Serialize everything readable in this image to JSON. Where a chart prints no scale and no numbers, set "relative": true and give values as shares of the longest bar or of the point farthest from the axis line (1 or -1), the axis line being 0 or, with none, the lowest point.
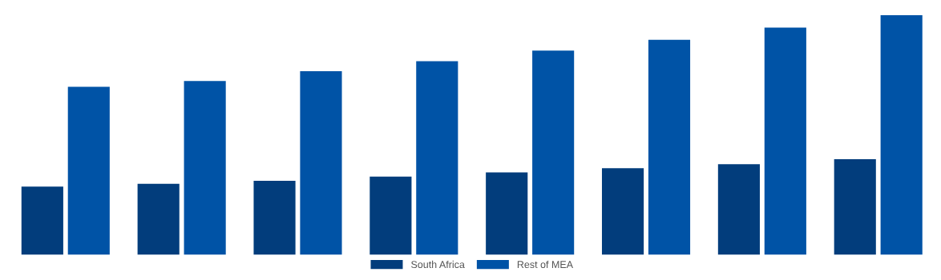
{
  "chart_data": {
    "type": "bar",
    "relative": true,
    "categories": [
      null,
      null,
      null,
      null,
      null,
      null,
      null,
      null
    ],
    "series": [
      {
        "name": "South Africa",
        "color": "#023d7c",
        "values": [
          0.285,
          0.296,
          0.309,
          0.326,
          0.344,
          0.361,
          0.378,
          0.399
        ]
      },
      {
        "name": "Rest of MEA",
        "color": "#0053a6",
        "values": [
          0.701,
          0.725,
          0.766,
          0.808,
          0.852,
          0.897,
          0.948,
          1.0
        ]
      }
    ],
    "legend": "bottom",
    "grid": false
  }
}
